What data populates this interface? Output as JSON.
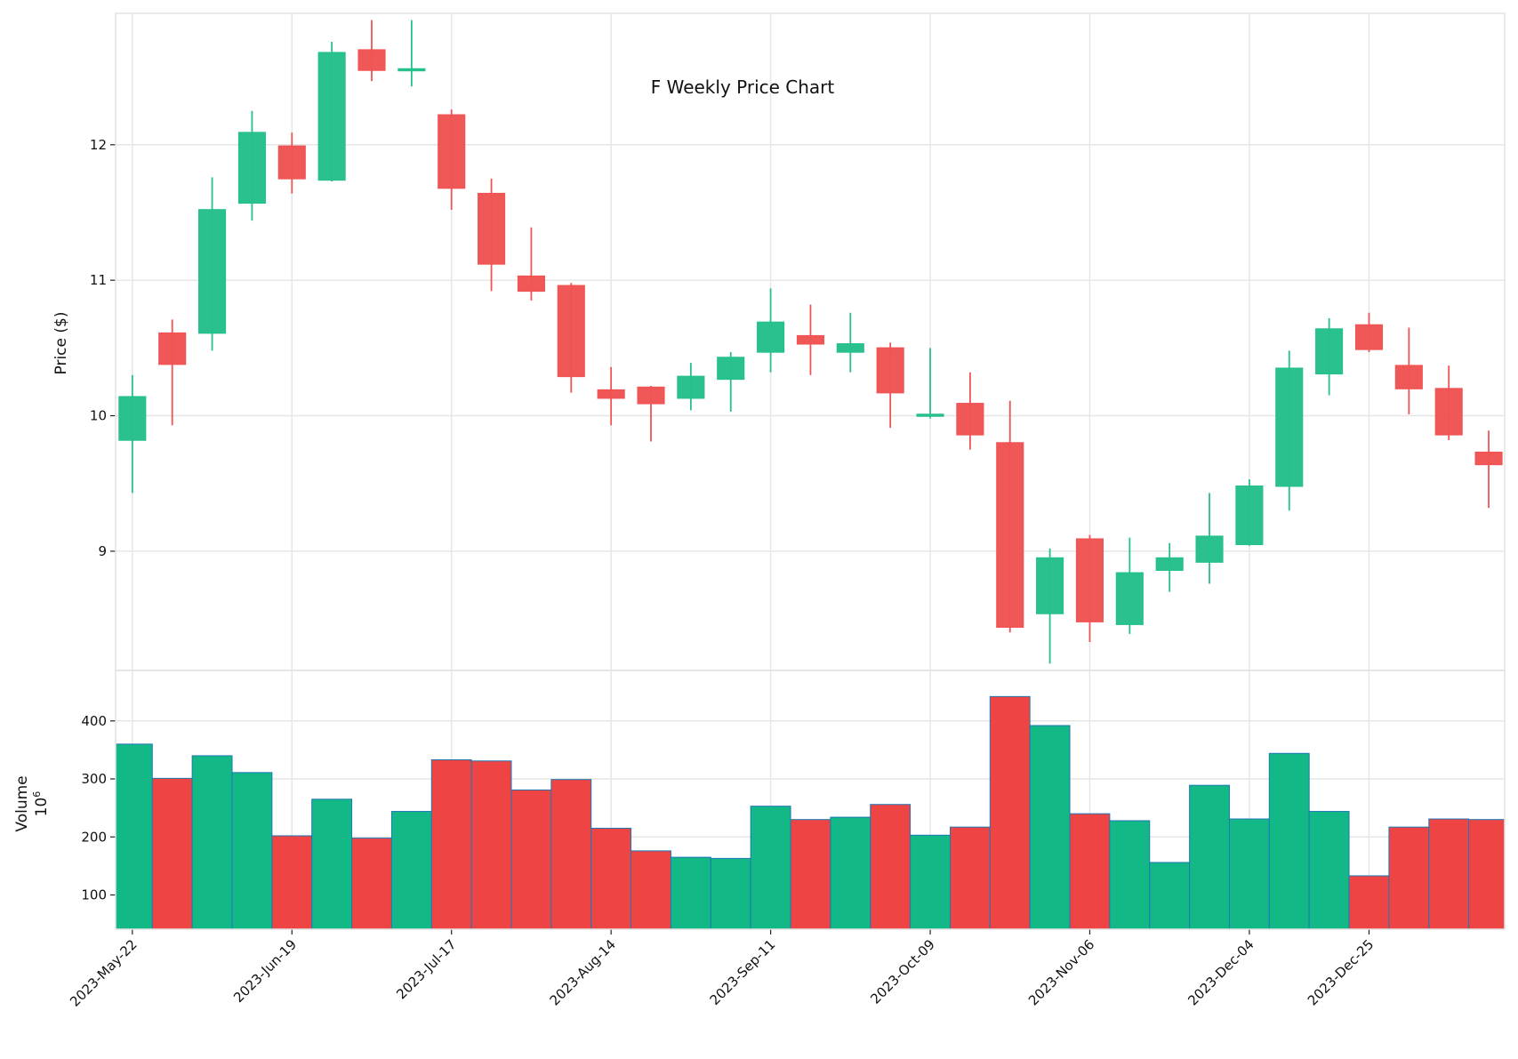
{
  "colors": {
    "up": "#26c08c",
    "down": "#f05454",
    "vol_up": "#12b886",
    "vol_down": "#ef4444",
    "vol_edge": "#1f77b4",
    "grid": "#e6e6e6"
  },
  "chart_data": {
    "type": "candlestick",
    "title": "F Weekly Price Chart",
    "ylabel": "Price ($)",
    "volume_label": "Volume",
    "volume_scale": "10",
    "volume_scale_exp": "6",
    "grid": true,
    "ylim": [
      8.12,
      12.97
    ],
    "yticks": [
      9,
      10,
      11,
      12
    ],
    "volume_ylim": [
      41,
      487
    ],
    "volume_ticks": [
      100,
      200,
      300,
      400
    ],
    "xtick_labels": [
      {
        "index": 0,
        "label": "2023-May-22"
      },
      {
        "index": 4,
        "label": "2023-Jun-19"
      },
      {
        "index": 8,
        "label": "2023-Jul-17"
      },
      {
        "index": 12,
        "label": "2023-Aug-14"
      },
      {
        "index": 16,
        "label": "2023-Sep-11"
      },
      {
        "index": 20,
        "label": "2023-Oct-09"
      },
      {
        "index": 24,
        "label": "2023-Nov-06"
      },
      {
        "index": 28,
        "label": "2023-Dec-04"
      },
      {
        "index": 31,
        "label": "2023-Dec-25"
      }
    ],
    "dates": [
      "2023-05-22",
      "2023-05-29",
      "2023-06-05",
      "2023-06-12",
      "2023-06-19",
      "2023-06-26",
      "2023-07-03",
      "2023-07-10",
      "2023-07-17",
      "2023-07-24",
      "2023-07-31",
      "2023-08-07",
      "2023-08-14",
      "2023-08-21",
      "2023-08-28",
      "2023-09-04",
      "2023-09-11",
      "2023-09-18",
      "2023-09-25",
      "2023-10-02",
      "2023-10-09",
      "2023-10-16",
      "2023-10-23",
      "2023-10-30",
      "2023-11-06",
      "2023-11-13",
      "2023-11-20",
      "2023-11-27",
      "2023-12-04",
      "2023-12-11",
      "2023-12-18",
      "2023-12-25",
      "2024-01-01",
      "2024-01-08",
      "2024-01-15"
    ],
    "open": [
      9.82,
      10.61,
      10.61,
      11.57,
      11.99,
      11.74,
      12.7,
      12.55,
      12.22,
      11.64,
      11.03,
      10.96,
      10.19,
      10.21,
      10.13,
      10.27,
      10.47,
      10.59,
      10.47,
      10.5,
      10.0,
      10.09,
      9.8,
      8.54,
      9.09,
      8.46,
      8.86,
      8.92,
      9.05,
      9.48,
      10.31,
      10.67,
      10.37,
      10.2,
      9.73
    ],
    "high": [
      10.3,
      10.71,
      11.76,
      12.25,
      12.09,
      12.76,
      12.92,
      12.92,
      12.26,
      11.75,
      11.39,
      10.98,
      10.36,
      10.22,
      10.39,
      10.47,
      10.94,
      10.82,
      10.76,
      10.54,
      10.5,
      10.32,
      10.11,
      9.02,
      9.12,
      9.1,
      9.06,
      9.43,
      9.53,
      10.48,
      10.72,
      10.76,
      10.65,
      10.37,
      9.89
    ],
    "low": [
      9.43,
      9.93,
      10.48,
      11.44,
      11.64,
      11.73,
      12.47,
      12.43,
      11.52,
      10.92,
      10.85,
      10.17,
      9.93,
      9.81,
      10.04,
      10.03,
      10.32,
      10.3,
      10.32,
      9.91,
      9.98,
      9.75,
      8.4,
      8.17,
      8.33,
      8.39,
      8.7,
      8.76,
      9.04,
      9.3,
      10.15,
      10.47,
      10.01,
      9.82,
      9.32
    ],
    "close": [
      10.14,
      10.38,
      11.52,
      12.09,
      11.75,
      12.68,
      12.55,
      12.56,
      11.68,
      11.12,
      10.92,
      10.29,
      10.13,
      10.09,
      10.29,
      10.43,
      10.69,
      10.53,
      10.53,
      10.17,
      10.01,
      9.86,
      8.44,
      8.95,
      8.48,
      8.84,
      8.95,
      9.11,
      9.48,
      10.35,
      10.64,
      10.49,
      10.2,
      9.86,
      9.64
    ],
    "volume": [
      360,
      301,
      340,
      311,
      202,
      265,
      198,
      244,
      333,
      331,
      281,
      299,
      215,
      176,
      165,
      163,
      253,
      230,
      234,
      256,
      203,
      217,
      442,
      392,
      240,
      228,
      156,
      289,
      231,
      344,
      244,
      133,
      217,
      231,
      230
    ]
  }
}
